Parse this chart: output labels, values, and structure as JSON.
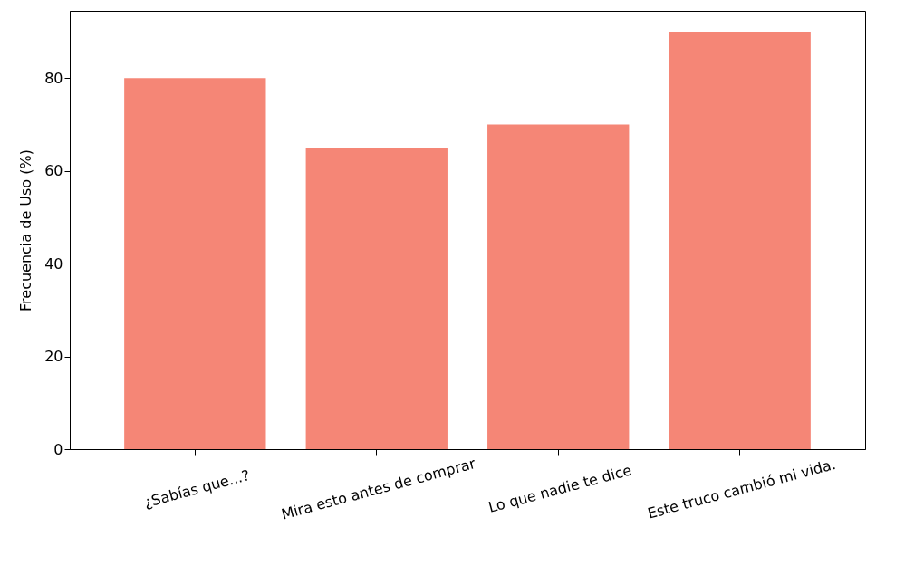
{
  "chart_data": {
    "type": "bar",
    "ylabel": "Frecuencia de Uso (%)",
    "categories": [
      "¿Sabías que...?",
      "Mira esto antes de comprar",
      "Lo que nadie te dice",
      "Este truco cambió mi vida."
    ],
    "values": [
      80,
      65,
      70,
      90
    ],
    "color": "#f4806f",
    "ylim": [
      0,
      94.5
    ],
    "yticks": [
      0,
      20,
      40,
      60,
      80
    ],
    "grid": false
  }
}
